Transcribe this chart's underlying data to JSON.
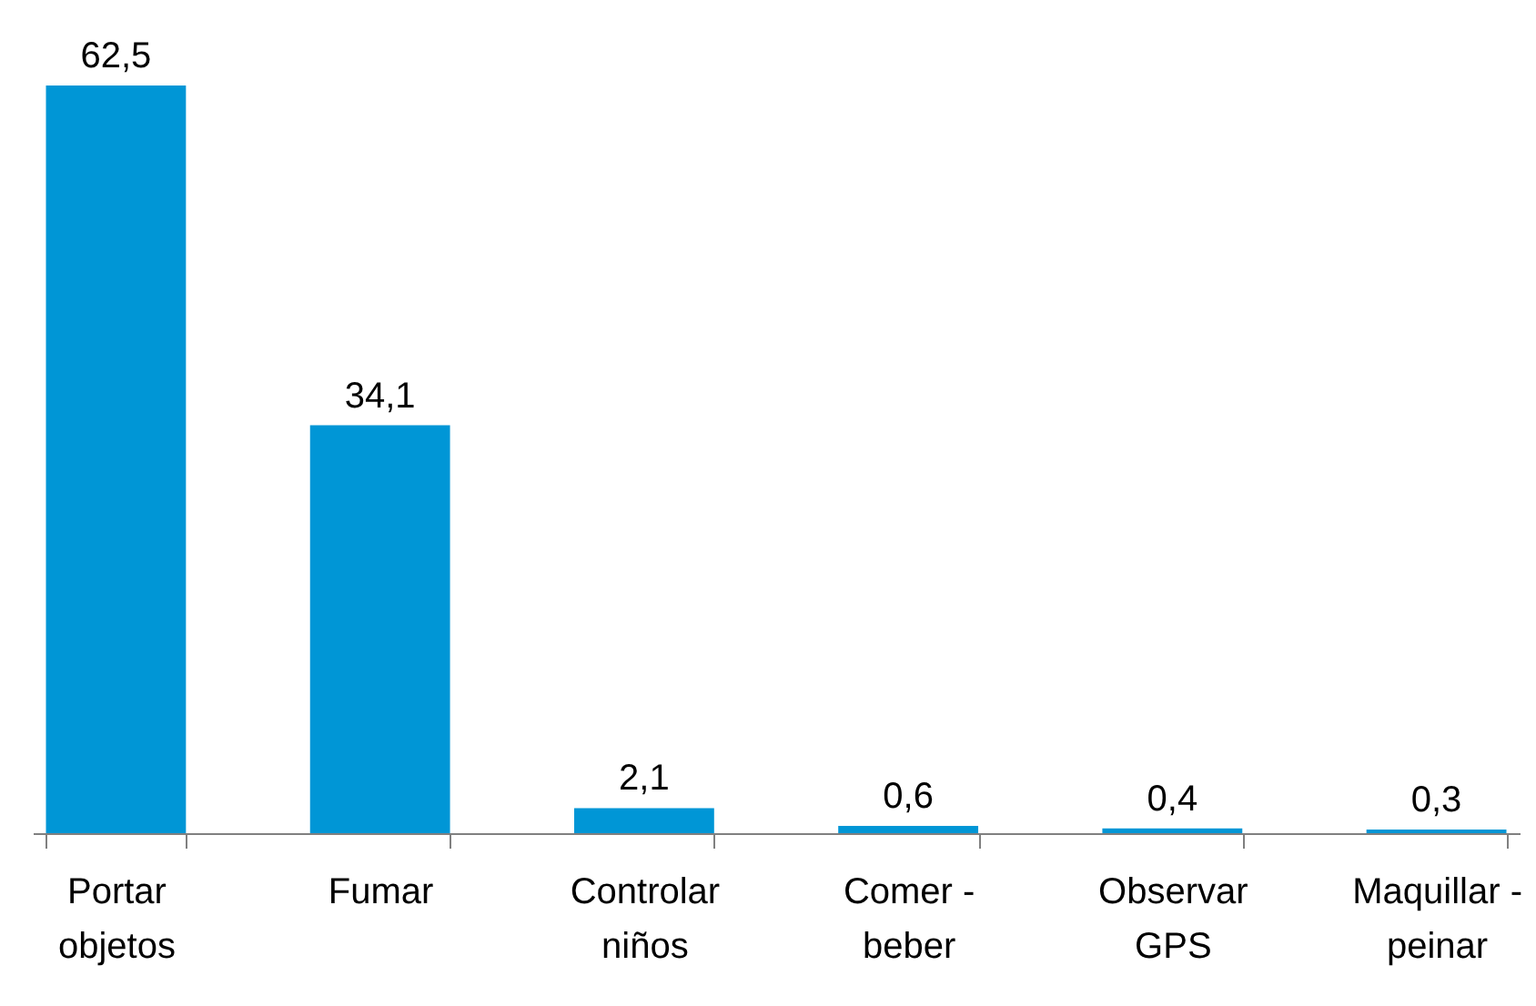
{
  "chart_data": {
    "type": "bar",
    "categories": [
      "Portar\nobjetos",
      "Fumar",
      "Controlar\nniños",
      "Comer -\nbeber",
      "Observar\nGPS",
      "Maquillar -\npeinar"
    ],
    "values": [
      62.5,
      34.1,
      2.1,
      0.6,
      0.4,
      0.3
    ],
    "color": "#0096d6",
    "value_labels": [
      "62,5",
      "34,1",
      "2,1",
      "0,6",
      "0,4",
      "0,3"
    ]
  }
}
